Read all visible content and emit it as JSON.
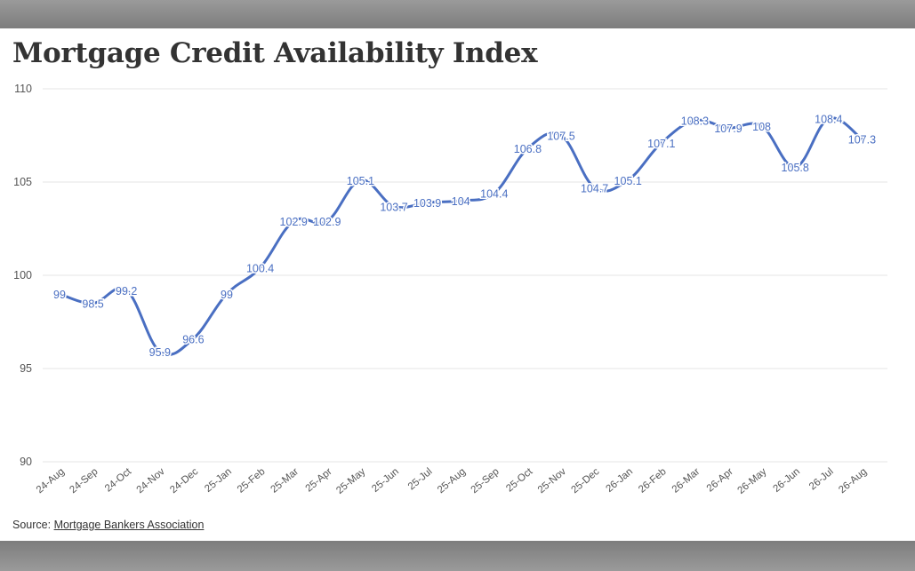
{
  "title": "Mortgage Credit Availability Index",
  "source": {
    "prefix": "Source: ",
    "link_text": "Mortgage Bankers Association"
  },
  "colors": {
    "line": "#4a6fc2",
    "label": "#4a6fc2",
    "grid": "#e6e6e6",
    "axis_text": "#555555"
  },
  "chart_data": {
    "type": "line",
    "title": "Mortgage Credit Availability Index",
    "xlabel": "",
    "ylabel": "",
    "ylim": [
      90,
      110
    ],
    "yticks": [
      90,
      95,
      100,
      105,
      110
    ],
    "grid": true,
    "categories": [
      "24-Aug",
      "24-Sep",
      "24-Oct",
      "24-Nov",
      "24-Dec",
      "25-Jan",
      "25-Feb",
      "25-Mar",
      "25-Apr",
      "25-May",
      "25-Jun",
      "25-Jul",
      "25-Aug",
      "25-Sep",
      "25-Oct",
      "25-Nov",
      "25-Dec",
      "26-Jan",
      "26-Feb",
      "26-Mar",
      "26-Apr",
      "26-May",
      "26-Jun",
      "26-Jul",
      "26-Aug"
    ],
    "series": [
      {
        "values": [
          99,
          98.5,
          99.2,
          95.9,
          96.6,
          99,
          100.4,
          102.9,
          102.9,
          105.1,
          103.7,
          103.9,
          104,
          104.4,
          106.8,
          107.5,
          104.7,
          105.1,
          107.1,
          108.3,
          107.9,
          108,
          105.8,
          108.4,
          107.3
        ],
        "data_labels": [
          "99",
          "98.5",
          "99.2",
          "95.9",
          "96.6",
          "99",
          "100.4",
          "102.9",
          "102.9",
          "105.1",
          "103.7",
          "103.9",
          "104",
          "104.4",
          "106.8",
          "107.5",
          "104.7",
          "105.1",
          "107.1",
          "108.3",
          "107.9",
          "108",
          "105.8",
          "108.4",
          "107.3"
        ]
      }
    ]
  }
}
